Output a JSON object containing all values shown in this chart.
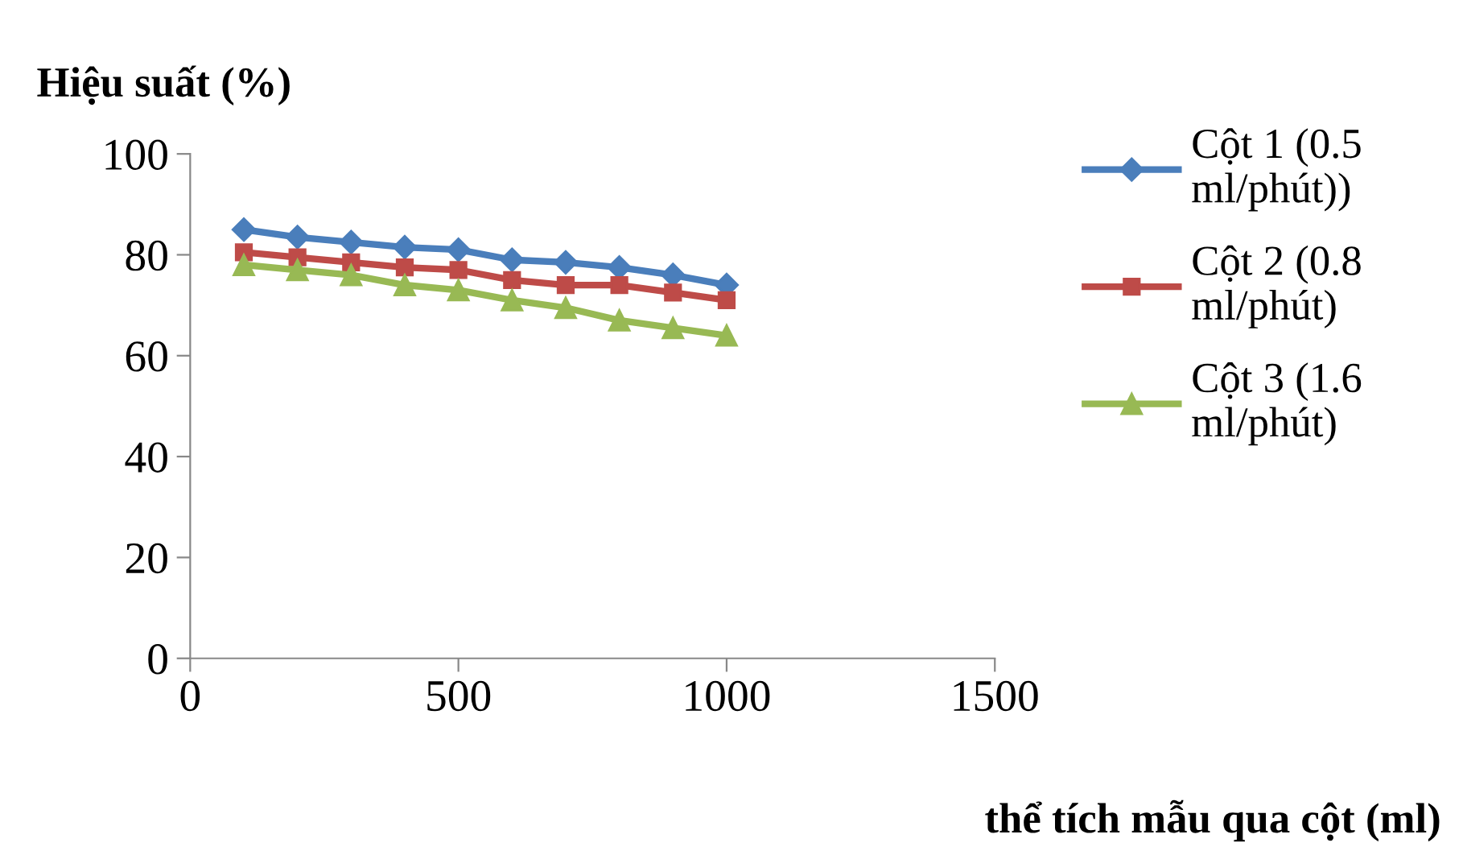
{
  "chart_data": {
    "type": "line",
    "ylabel": "Hiệu suất (%)",
    "xlabel": "thể tích mẫu qua cột (ml)",
    "x": [
      100,
      200,
      300,
      400,
      500,
      600,
      700,
      800,
      900,
      1000
    ],
    "series": [
      {
        "name": "Cột 1 (0.5 ml/phút))",
        "color": "#4a7ebb",
        "marker": "diamond",
        "values": [
          85,
          83.5,
          82.5,
          81.5,
          81,
          79,
          78.5,
          77.5,
          76,
          74
        ]
      },
      {
        "name": "Cột 2 (0.8 ml/phút)",
        "color": "#be4b48",
        "marker": "square",
        "values": [
          80.5,
          79.5,
          78.5,
          77.5,
          77,
          75,
          74,
          74,
          72.5,
          71
        ]
      },
      {
        "name": "Cột 3 (1.6 ml/phút)",
        "color": "#98b954",
        "marker": "triangle",
        "values": [
          78,
          77,
          76,
          74,
          73,
          71,
          69.5,
          67,
          65.5,
          64
        ]
      }
    ],
    "xlim": [
      0,
      1500
    ],
    "xticks": [
      0,
      500,
      1000,
      1500
    ],
    "ylim": [
      0,
      100
    ],
    "yticks": [
      0,
      20,
      40,
      60,
      80,
      100
    ],
    "grid": false,
    "legend": "right"
  }
}
